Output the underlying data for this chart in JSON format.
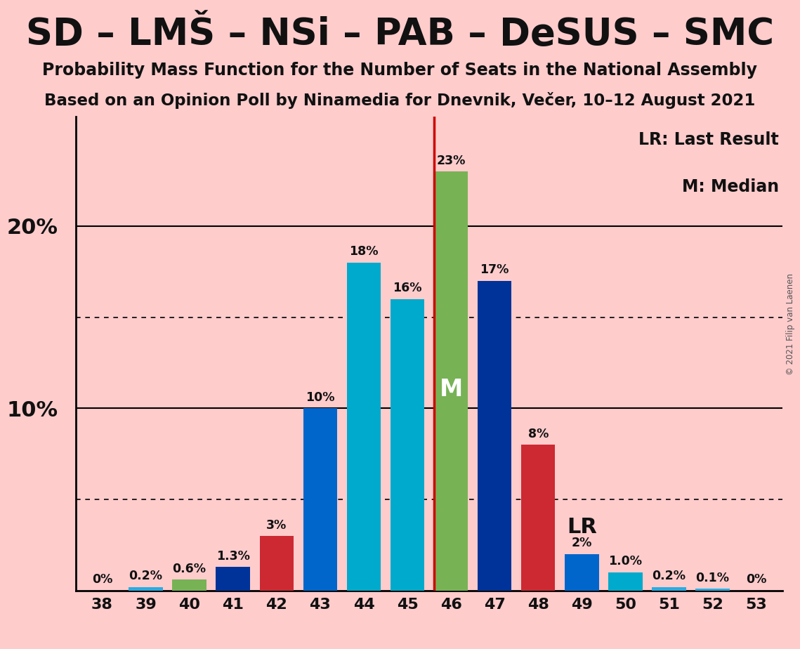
{
  "title": "SD – LMŠ – NSi – PAB – DeSUS – SMC",
  "subtitle1": "Probability Mass Function for the Number of Seats in the National Assembly",
  "subtitle2": "Based on an Opinion Poll by Ninamedia for Dnevnik, Večer, 10–12 August 2021",
  "copyright": "© 2021 Filip van Laenen",
  "seats": [
    38,
    39,
    40,
    41,
    42,
    43,
    44,
    45,
    46,
    47,
    48,
    49,
    50,
    51,
    52,
    53
  ],
  "values": [
    0.0,
    0.2,
    0.6,
    1.3,
    3.0,
    10.0,
    18.0,
    16.0,
    23.0,
    17.0,
    8.0,
    2.0,
    1.0,
    0.2,
    0.1,
    0.0
  ],
  "labels": [
    "0%",
    "0.2%",
    "0.6%",
    "1.3%",
    "3%",
    "10%",
    "18%",
    "16%",
    "23%",
    "17%",
    "8%",
    "2%",
    "1.0%",
    "0.2%",
    "0.1%",
    "0%"
  ],
  "bar_colors": [
    "#29ABE2",
    "#29ABE2",
    "#77B255",
    "#003399",
    "#CC2933",
    "#0066CC",
    "#00AACC",
    "#00AACC",
    "#77B255",
    "#003399",
    "#CC2933",
    "#0066CC",
    "#00AACC",
    "#29ABE2",
    "#29ABE2",
    "#29ABE2"
  ],
  "median_seat": 46,
  "lr_seat": 46,
  "median_label": "M",
  "lr_label": "LR",
  "lr_line_color": "#CC0000",
  "background_color": "#FFCCCC",
  "ylim": [
    0,
    26
  ],
  "legend_lr": "LR: Last Result",
  "legend_m": "M: Median",
  "dotted_lines": [
    5,
    15
  ],
  "solid_lines": [
    10,
    20
  ],
  "ytick_vals": [
    10,
    20
  ],
  "ytick_labels": [
    "10%",
    "20%"
  ]
}
